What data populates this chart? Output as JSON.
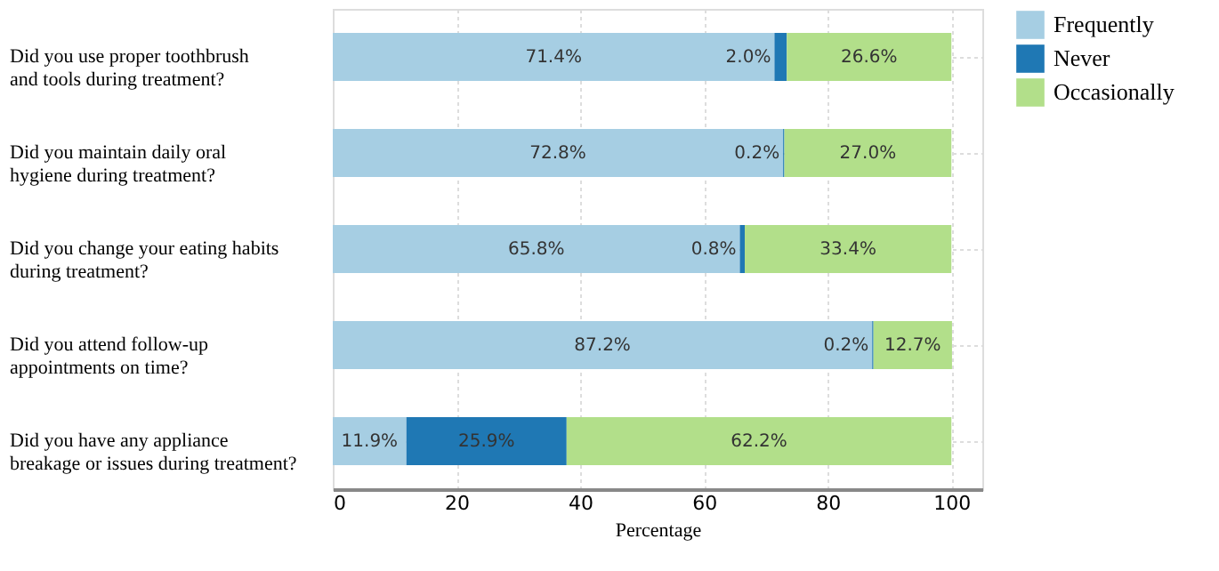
{
  "chart_data": {
    "type": "bar",
    "orientation": "horizontal",
    "stacked": true,
    "xlabel": "Percentage",
    "categories": [
      "Did you use proper toothbrush\nand tools during treatment?",
      "Did you maintain daily oral\nhygiene during treatment?",
      "Did you change your eating habits\n during treatment?",
      "Did you attend follow-up\nappointments on time?",
      "Did you have any appliance\nbreakage or issues during treatment?"
    ],
    "series": [
      {
        "name": "Frequently",
        "color": "#a6cee3",
        "values": [
          71.4,
          72.8,
          65.8,
          87.2,
          11.9
        ],
        "value_labels": [
          "71.4%",
          "72.8%",
          "65.8%",
          "87.2%",
          "11.9%"
        ]
      },
      {
        "name": "Never",
        "color": "#1f78b4",
        "values": [
          2.0,
          0.2,
          0.8,
          0.2,
          25.9
        ],
        "value_labels": [
          "2.0%",
          "0.2%",
          "0.8%",
          "0.2%",
          "25.9%"
        ]
      },
      {
        "name": "Occasionally",
        "color": "#b2df8a",
        "values": [
          26.6,
          27.0,
          33.4,
          12.7,
          62.2
        ],
        "value_labels": [
          "26.6%",
          "27.0%",
          "33.4%",
          "12.7%",
          "62.2%"
        ]
      }
    ],
    "xlim": [
      0,
      105
    ],
    "xticks": [
      0,
      20,
      40,
      60,
      80,
      100
    ],
    "grid": true,
    "legend": "right"
  }
}
